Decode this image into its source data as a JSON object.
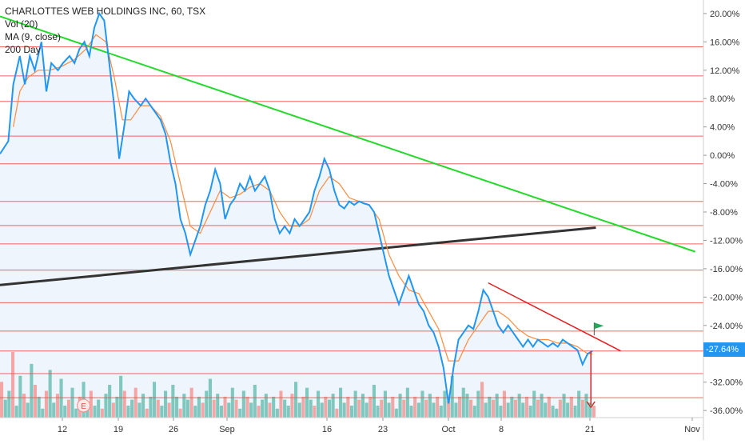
{
  "header": {
    "symbol_line": "CHARLOTTES WEB HOLDINGS INC, 60, TSX",
    "indicator_1": "Vol (20)",
    "indicator_2": "MA (9, close)",
    "indicator_3": "200 Day"
  },
  "last_value_label": "-27.64%",
  "event_marker": "E",
  "colors": {
    "price": "#2196f3",
    "ma": "#ff8a3d",
    "ma200": "#333333",
    "down_trend": "#23d92a",
    "support_lines": "#f04a4a",
    "volume_up": "#7fc8bf",
    "volume_down": "#f4a6a6",
    "flag": "#26a65b",
    "area_fill": "#e8f2fc",
    "tag_bg": "#2196f3"
  },
  "chart_data": {
    "type": "line",
    "title": "CHARLOTTES WEB HOLDINGS INC, 60, TSX",
    "xlabel": "",
    "ylabel": "",
    "ylim": [
      -37,
      21
    ],
    "x_ticks": [
      "12",
      "19",
      "26",
      "Sep",
      "16",
      "23",
      "Oct",
      "8",
      "21",
      "Nov"
    ],
    "y_ticks": [
      "20.00%",
      "16.00%",
      "12.00%",
      "8.00%",
      "4.00%",
      "0.00%",
      "-4.00%",
      "-8.00%",
      "-12.00%",
      "-16.00%",
      "-20.00%",
      "-24.00%",
      "-28.00%",
      "-32.00%",
      "-36.00%"
    ],
    "horizontal_levels": [
      15.3,
      11.2,
      7.6,
      2.7,
      -1.2,
      -6.5,
      -9.9,
      -12.5,
      -16.2,
      -20.8,
      -24.8,
      -27.6,
      -30.8,
      -34.2
    ],
    "trendline_green": {
      "start": [
        -0.5,
        19.6
      ],
      "end": [
        41.5,
        -13.6
      ]
    },
    "trendline_red": {
      "start": [
        29.0,
        -18.0
      ],
      "end": [
        37.0,
        -27.6
      ]
    },
    "ma200": {
      "start": [
        -0.5,
        -18.3
      ],
      "end": [
        35.5,
        -10.2
      ]
    },
    "price_series": [
      [
        -0.5,
        0.2
      ],
      [
        0,
        2
      ],
      [
        0.3,
        10
      ],
      [
        0.7,
        14
      ],
      [
        1,
        10
      ],
      [
        1.3,
        14
      ],
      [
        1.6,
        12
      ],
      [
        2,
        16
      ],
      [
        2.3,
        9
      ],
      [
        2.6,
        13
      ],
      [
        3,
        12
      ],
      [
        3.3,
        13
      ],
      [
        3.7,
        14
      ],
      [
        4,
        13
      ],
      [
        4.3,
        15
      ],
      [
        4.6,
        16
      ],
      [
        4.9,
        14
      ],
      [
        5.2,
        18
      ],
      [
        5.5,
        20
      ],
      [
        5.8,
        19
      ],
      [
        6.1,
        13
      ],
      [
        6.4,
        7
      ],
      [
        6.7,
        -0.5
      ],
      [
        7,
        4
      ],
      [
        7.3,
        9
      ],
      [
        7.6,
        8
      ],
      [
        8,
        7
      ],
      [
        8.3,
        8
      ],
      [
        8.6,
        7
      ],
      [
        8.9,
        6
      ],
      [
        9.2,
        5
      ],
      [
        9.5,
        3
      ],
      [
        9.8,
        -1
      ],
      [
        10.1,
        -4
      ],
      [
        10.4,
        -9
      ],
      [
        10.7,
        -11
      ],
      [
        11,
        -14
      ],
      [
        11.3,
        -12
      ],
      [
        11.6,
        -10
      ],
      [
        11.9,
        -7
      ],
      [
        12.2,
        -5
      ],
      [
        12.5,
        -2
      ],
      [
        12.8,
        -4
      ],
      [
        13.1,
        -9
      ],
      [
        13.4,
        -7
      ],
      [
        13.7,
        -6
      ],
      [
        14,
        -4
      ],
      [
        14.3,
        -5
      ],
      [
        14.6,
        -3
      ],
      [
        14.9,
        -5
      ],
      [
        15.2,
        -4
      ],
      [
        15.5,
        -3
      ],
      [
        15.8,
        -5
      ],
      [
        16.1,
        -9
      ],
      [
        16.4,
        -11
      ],
      [
        16.7,
        -10
      ],
      [
        17,
        -11
      ],
      [
        17.3,
        -9
      ],
      [
        17.6,
        -10
      ],
      [
        17.9,
        -9
      ],
      [
        18.2,
        -8
      ],
      [
        18.5,
        -5
      ],
      [
        18.8,
        -3
      ],
      [
        19.1,
        -0.5
      ],
      [
        19.4,
        -2
      ],
      [
        19.7,
        -5
      ],
      [
        20,
        -7
      ],
      [
        20.3,
        -7.5
      ],
      [
        20.6,
        -6.5
      ],
      [
        20.9,
        -7
      ],
      [
        21.2,
        -6.5
      ],
      [
        21.5,
        -6.8
      ],
      [
        21.8,
        -7
      ],
      [
        22.1,
        -8
      ],
      [
        22.4,
        -11
      ],
      [
        22.7,
        -14
      ],
      [
        23,
        -17
      ],
      [
        23.3,
        -19
      ],
      [
        23.6,
        -21
      ],
      [
        23.9,
        -19
      ],
      [
        24.2,
        -17
      ],
      [
        24.5,
        -19
      ],
      [
        24.8,
        -21
      ],
      [
        25.1,
        -22
      ],
      [
        25.4,
        -24
      ],
      [
        25.7,
        -25
      ],
      [
        26,
        -27
      ],
      [
        26.3,
        -30
      ],
      [
        26.6,
        -35
      ],
      [
        26.9,
        -30
      ],
      [
        27.2,
        -26
      ],
      [
        27.5,
        -25
      ],
      [
        27.8,
        -24
      ],
      [
        28.1,
        -24.5
      ],
      [
        28.4,
        -22
      ],
      [
        28.7,
        -19
      ],
      [
        29,
        -20
      ],
      [
        29.3,
        -22
      ],
      [
        29.6,
        -24
      ],
      [
        29.9,
        -25
      ],
      [
        30.2,
        -24
      ],
      [
        30.5,
        -25
      ],
      [
        30.8,
        -26
      ],
      [
        31.1,
        -27
      ],
      [
        31.4,
        -26
      ],
      [
        31.7,
        -27
      ],
      [
        32,
        -26
      ],
      [
        32.3,
        -26.5
      ],
      [
        32.6,
        -27
      ],
      [
        32.9,
        -26.5
      ],
      [
        33.2,
        -27
      ],
      [
        33.5,
        -26
      ],
      [
        33.8,
        -26.5
      ],
      [
        34.1,
        -27
      ],
      [
        34.4,
        -27.5
      ],
      [
        34.7,
        -29.5
      ],
      [
        35,
        -28
      ],
      [
        35.3,
        -27.6
      ]
    ],
    "ma_series": [
      [
        0.3,
        4
      ],
      [
        0.7,
        9
      ],
      [
        1.2,
        11
      ],
      [
        1.8,
        12
      ],
      [
        2.5,
        12
      ],
      [
        3.2,
        12.5
      ],
      [
        4,
        13.5
      ],
      [
        4.7,
        15
      ],
      [
        5.3,
        17
      ],
      [
        5.9,
        16
      ],
      [
        6.4,
        11
      ],
      [
        6.9,
        5
      ],
      [
        7.4,
        5
      ],
      [
        8,
        7
      ],
      [
        8.6,
        7
      ],
      [
        9.2,
        5.5
      ],
      [
        9.8,
        2
      ],
      [
        10.4,
        -4
      ],
      [
        11,
        -10
      ],
      [
        11.6,
        -11
      ],
      [
        12.2,
        -8
      ],
      [
        12.8,
        -5
      ],
      [
        13.4,
        -6
      ],
      [
        14,
        -5.5
      ],
      [
        14.6,
        -4.5
      ],
      [
        15.2,
        -4
      ],
      [
        15.8,
        -5
      ],
      [
        16.4,
        -8
      ],
      [
        17,
        -10
      ],
      [
        17.6,
        -10
      ],
      [
        18.2,
        -9
      ],
      [
        18.8,
        -5
      ],
      [
        19.4,
        -3
      ],
      [
        20,
        -4
      ],
      [
        20.6,
        -6
      ],
      [
        21.2,
        -6.5
      ],
      [
        21.8,
        -7
      ],
      [
        22.4,
        -9
      ],
      [
        23,
        -14
      ],
      [
        23.6,
        -17
      ],
      [
        24.2,
        -19
      ],
      [
        24.8,
        -19.5
      ],
      [
        25.4,
        -22
      ],
      [
        26,
        -24.5
      ],
      [
        26.6,
        -29
      ],
      [
        27.2,
        -29
      ],
      [
        27.8,
        -26
      ],
      [
        28.4,
        -24
      ],
      [
        29,
        -22
      ],
      [
        29.6,
        -22
      ],
      [
        30.2,
        -23
      ],
      [
        30.8,
        -24.5
      ],
      [
        31.4,
        -25.5
      ],
      [
        32,
        -26
      ],
      [
        32.6,
        -26
      ],
      [
        33.2,
        -26.5
      ],
      [
        33.8,
        -26.5
      ],
      [
        34.4,
        -27
      ],
      [
        35,
        -28
      ],
      [
        35.3,
        -28
      ]
    ],
    "volume": [
      12,
      6,
      9,
      22,
      4,
      14,
      8,
      5,
      18,
      11,
      7,
      3,
      9,
      16,
      5,
      8,
      13,
      4,
      6,
      10,
      3,
      7,
      12,
      5,
      9,
      4,
      6,
      3,
      8,
      11,
      5,
      7,
      14,
      9,
      4,
      6,
      10,
      5,
      8,
      3,
      7,
      12,
      6,
      4,
      9,
      5,
      11,
      7,
      3,
      8,
      6,
      10,
      4,
      7,
      5,
      9,
      13,
      6,
      8,
      4,
      7,
      5,
      10,
      6,
      3,
      9,
      7,
      5,
      11,
      4,
      6,
      8,
      5,
      7,
      3,
      9,
      6,
      4,
      8,
      12,
      5,
      7,
      10,
      6,
      4,
      9,
      5,
      7,
      6,
      8,
      3,
      10,
      5,
      7,
      4,
      9,
      6,
      8,
      5,
      7,
      11,
      4,
      6,
      9,
      5,
      7,
      3,
      8,
      6,
      10,
      4,
      7,
      5,
      9,
      6,
      8,
      5,
      7,
      4,
      9,
      6,
      14,
      5,
      7,
      10,
      8,
      6,
      4,
      9,
      12,
      5,
      7,
      6,
      8,
      4,
      9,
      5,
      7,
      6,
      8,
      5,
      7,
      4,
      9,
      6,
      8,
      5,
      7,
      4,
      3,
      6,
      8,
      5,
      7,
      4,
      9,
      6,
      8,
      5,
      4
    ]
  }
}
